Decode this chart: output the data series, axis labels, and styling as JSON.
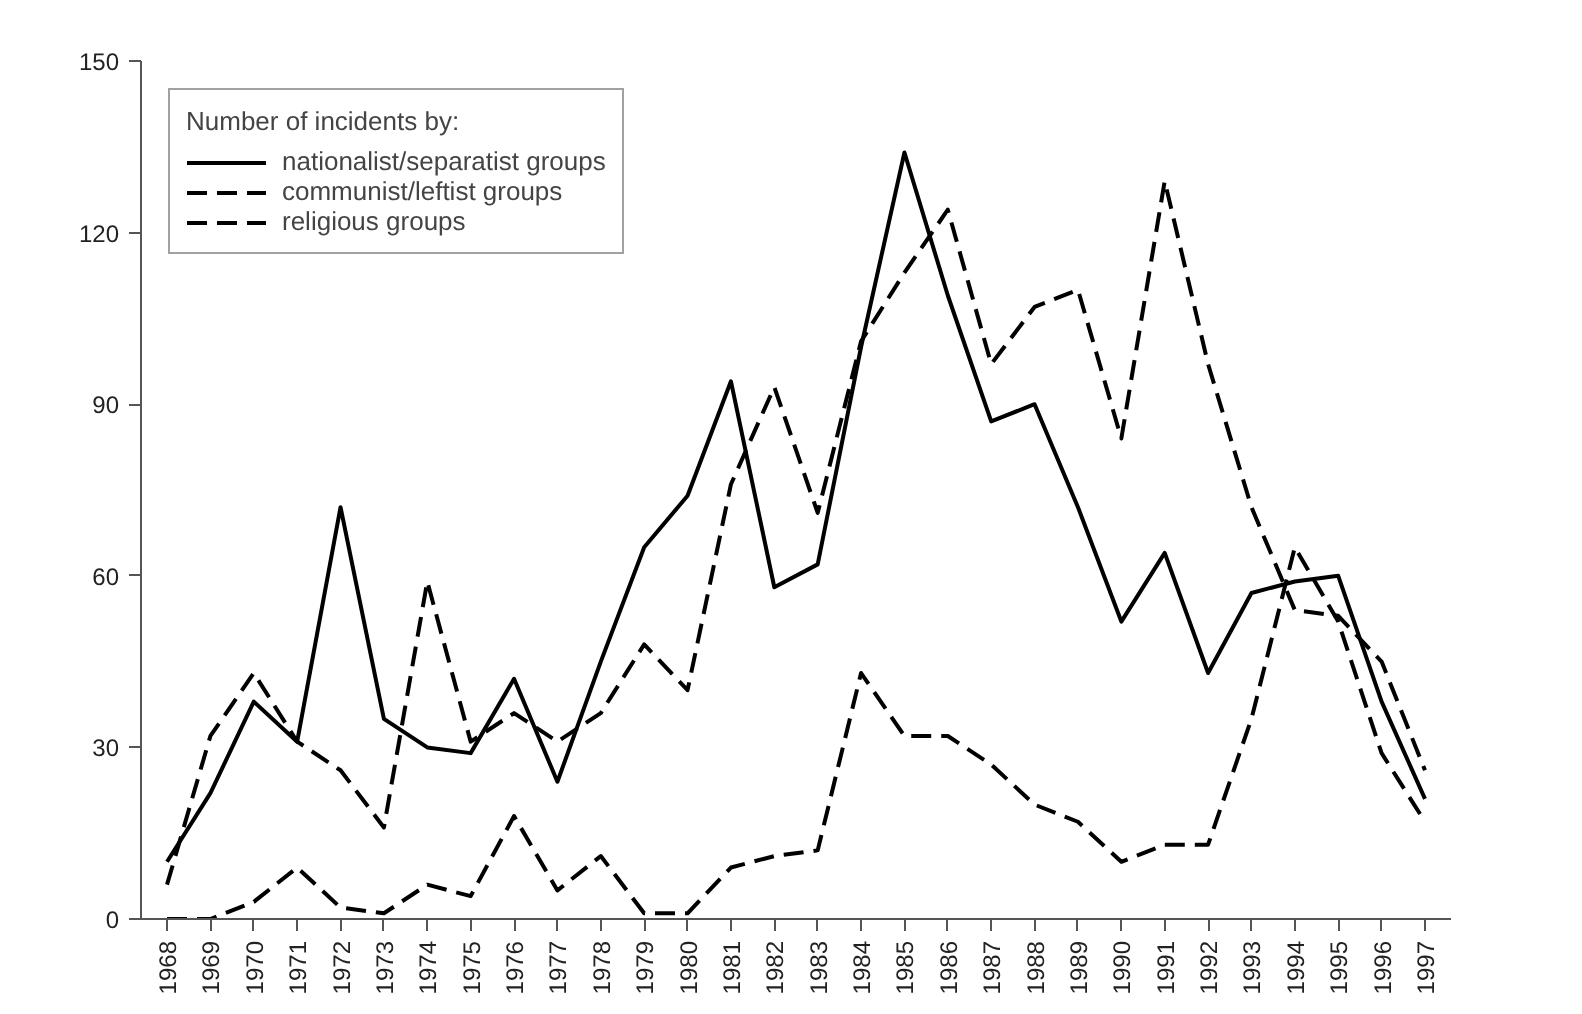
{
  "chart_data": {
    "type": "line",
    "legend_title": "Number of incidents by:",
    "legend": "top left",
    "grid": false,
    "marker": "none",
    "categories": [
      "1968",
      "1969",
      "1970",
      "1971",
      "1972",
      "1973",
      "1974",
      "1975",
      "1976",
      "1977",
      "1978",
      "1979",
      "1980",
      "1981",
      "1982",
      "1983",
      "1984",
      "1985",
      "1986",
      "1987",
      "1988",
      "1989",
      "1990",
      "1991",
      "1992",
      "1993",
      "1994",
      "1995",
      "1996",
      "1997"
    ],
    "ylim": [
      0,
      150
    ],
    "yticks": [
      0,
      30,
      60,
      90,
      120,
      150
    ],
    "series": [
      {
        "name": "nationalist/separatist groups",
        "color": "#000000",
        "line_style": "solid",
        "values": [
          10,
          22,
          38,
          31,
          72,
          35,
          30,
          29,
          42,
          24,
          45,
          65,
          74,
          94,
          58,
          62,
          100,
          134,
          109,
          87,
          90,
          72,
          52,
          64,
          43,
          57,
          59,
          60,
          38,
          21
        ]
      },
      {
        "name": "communist/leftist groups",
        "color": "#000000",
        "line_style": "dashed",
        "values": [
          6,
          32,
          43,
          31,
          26,
          16,
          59,
          31,
          36,
          31,
          36,
          48,
          40,
          76,
          93,
          71,
          101,
          113,
          124,
          97,
          107,
          110,
          84,
          129,
          97,
          72,
          54,
          53,
          45,
          26
        ]
      },
      {
        "name": "religious groups",
        "color": "#000000",
        "line_style": "dashed",
        "values": [
          0,
          0,
          3,
          9,
          2,
          1,
          6,
          4,
          18,
          5,
          11,
          1,
          1,
          9,
          11,
          12,
          43,
          32,
          32,
          27,
          20,
          17,
          10,
          13,
          13,
          35,
          65,
          52,
          29,
          17
        ]
      }
    ]
  }
}
